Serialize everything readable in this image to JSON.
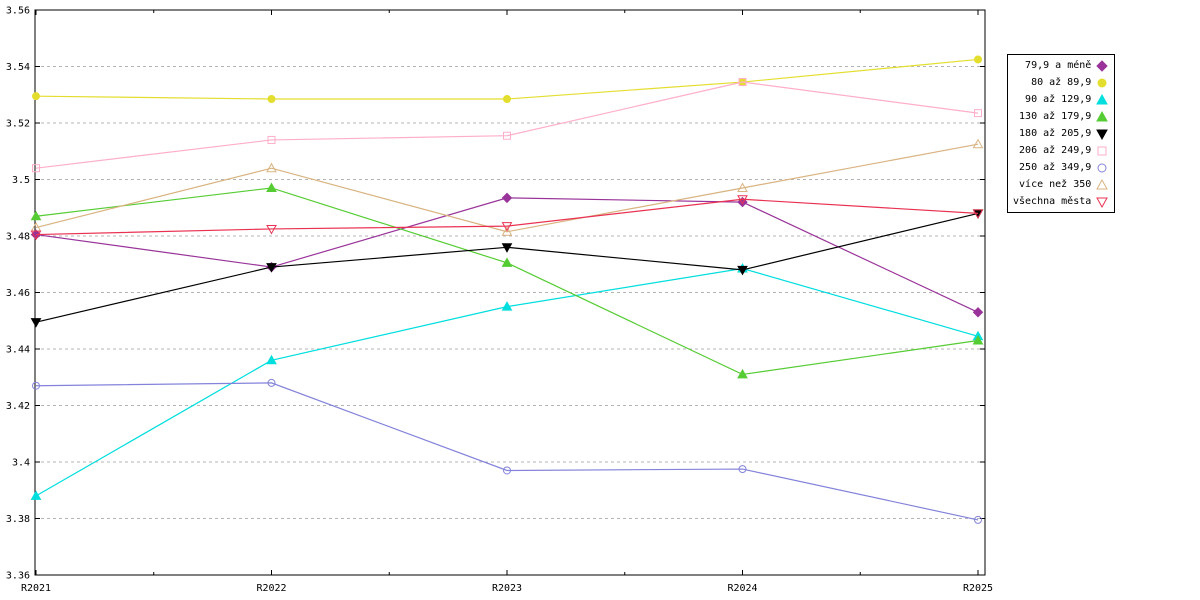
{
  "chart_data": {
    "type": "line",
    "title": "",
    "xlabel": "",
    "ylabel": "",
    "grid": true,
    "legend_position": "outside-right",
    "ylim": [
      3.36,
      3.56
    ],
    "categories": [
      "R2021",
      "R2022",
      "R2023",
      "R2024",
      "R2025"
    ],
    "yticks": [
      {
        "value": 3.56,
        "label": "3.56"
      },
      {
        "value": 3.54,
        "label": "3.54"
      },
      {
        "value": 3.52,
        "label": "3.52"
      },
      {
        "value": 3.5,
        "label": "3.5"
      },
      {
        "value": 3.48,
        "label": "3.48"
      },
      {
        "value": 3.46,
        "label": "3.46"
      },
      {
        "value": 3.44,
        "label": "3.44"
      },
      {
        "value": 3.42,
        "label": "3.42"
      },
      {
        "value": 3.4,
        "label": "3.4"
      },
      {
        "value": 3.38,
        "label": "3.38"
      },
      {
        "value": 3.36,
        "label": "3.36"
      }
    ],
    "series": [
      {
        "name": "79,9 a méně",
        "color": "#993399",
        "marker": "diamond",
        "filled": true,
        "values": [
          3.4805,
          3.469,
          3.4935,
          3.492,
          3.453
        ]
      },
      {
        "name": "80 až 89,9",
        "color": "#E3DE2E",
        "marker": "circle",
        "filled": true,
        "values": [
          3.5295,
          3.5285,
          3.5285,
          3.5345,
          3.5425
        ]
      },
      {
        "name": "90 až 129,9",
        "color": "#00DEDE",
        "marker": "triangle-up",
        "filled": true,
        "values": [
          3.388,
          3.436,
          3.455,
          3.4685,
          3.4445
        ]
      },
      {
        "name": "130 až 179,9",
        "color": "#55CC33",
        "marker": "triangle-up",
        "filled": true,
        "values": [
          3.487,
          3.497,
          3.4705,
          3.431,
          3.443
        ]
      },
      {
        "name": "180 až 205,9",
        "color": "#000000",
        "marker": "triangle-down",
        "filled": true,
        "values": [
          3.4495,
          3.469,
          3.476,
          3.468,
          3.488
        ]
      },
      {
        "name": "206 až 249,9",
        "color": "#FFAEC9",
        "marker": "square",
        "filled": false,
        "values": [
          3.504,
          3.514,
          3.5155,
          3.5345,
          3.5235
        ]
      },
      {
        "name": "250 až 349,9",
        "color": "#8383DB",
        "marker": "circle",
        "filled": false,
        "values": [
          3.427,
          3.428,
          3.397,
          3.3975,
          3.3795
        ]
      },
      {
        "name": "více než 350",
        "color": "#D9B380",
        "marker": "triangle-up",
        "filled": false,
        "values": [
          3.483,
          3.504,
          3.4815,
          3.497,
          3.5125
        ]
      },
      {
        "name": "všechna města",
        "color": "#E93252",
        "marker": "triangle-down",
        "filled": false,
        "values": [
          3.4805,
          3.4825,
          3.4835,
          3.493,
          3.488
        ]
      }
    ]
  }
}
